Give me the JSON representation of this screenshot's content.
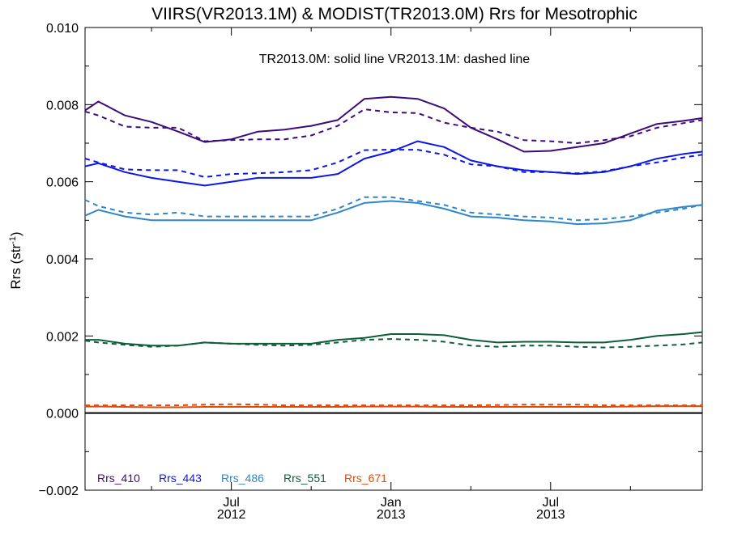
{
  "chart_data": {
    "type": "line",
    "title": "VIIRS(VR2013.1M) & MODIST(TR2013.0M)  Rrs for Mesotrophic",
    "annotation": "TR2013.0M: solid line   VR2013.1M: dashed line",
    "ylabel_main": "Rrs (str",
    "ylabel_sup": "-1",
    "ylabel_close": ")",
    "ylim": [
      -0.002,
      0.01
    ],
    "yticks": [
      -0.002,
      0.0,
      0.002,
      0.004,
      0.006,
      0.008,
      0.01
    ],
    "ytick_labels": [
      "−0.002",
      "0.000",
      "0.002",
      "0.004",
      "0.006",
      "0.008",
      "0.010"
    ],
    "x_unit": "month index (0 = Jan 2012)",
    "xlim": [
      0.5,
      23.7
    ],
    "xticks": [
      {
        "x": 6,
        "line1": "Jul",
        "line2": "2012"
      },
      {
        "x": 12,
        "line1": "Jan",
        "line2": "2013"
      },
      {
        "x": 18,
        "line1": "Jul",
        "line2": "2013"
      }
    ],
    "xminor": [
      3,
      9,
      15,
      21
    ],
    "months": [
      0.5,
      1,
      2,
      3,
      4,
      5,
      6,
      7,
      8,
      9,
      10,
      11,
      12,
      13,
      14,
      15,
      16,
      17,
      18,
      19,
      20,
      21,
      22,
      23,
      23.7
    ],
    "zero_line": true,
    "series": [
      {
        "name": "Rrs_410",
        "color": "#3d0b7a",
        "solid": [
          0.00785,
          0.00808,
          0.00772,
          0.00755,
          0.0073,
          0.00703,
          0.0071,
          0.0073,
          0.00735,
          0.00745,
          0.0076,
          0.00815,
          0.0082,
          0.00815,
          0.0079,
          0.0074,
          0.0071,
          0.00678,
          0.0068,
          0.0069,
          0.007,
          0.00725,
          0.0075,
          0.00758,
          0.00765
        ],
        "dashed": [
          0.00782,
          0.00772,
          0.00743,
          0.0074,
          0.0074,
          0.00705,
          0.00708,
          0.0071,
          0.0071,
          0.0072,
          0.00745,
          0.00788,
          0.0078,
          0.00778,
          0.00753,
          0.0074,
          0.0073,
          0.00708,
          0.00705,
          0.007,
          0.00708,
          0.00718,
          0.0074,
          0.00752,
          0.0076
        ]
      },
      {
        "name": "Rrs_443",
        "color": "#0b17e6",
        "solid": [
          0.0064,
          0.00648,
          0.00625,
          0.0061,
          0.006,
          0.0059,
          0.006,
          0.0061,
          0.0061,
          0.0061,
          0.0062,
          0.0066,
          0.00678,
          0.00705,
          0.0069,
          0.00655,
          0.0064,
          0.0063,
          0.00625,
          0.0062,
          0.00625,
          0.0064,
          0.0066,
          0.00672,
          0.00678
        ],
        "dashed": [
          0.0066,
          0.0065,
          0.00632,
          0.0063,
          0.0063,
          0.00612,
          0.0062,
          0.00622,
          0.00625,
          0.0063,
          0.0065,
          0.00682,
          0.00683,
          0.00683,
          0.0067,
          0.00645,
          0.0064,
          0.00625,
          0.00625,
          0.00622,
          0.00627,
          0.0064,
          0.0065,
          0.00663,
          0.0067
        ]
      },
      {
        "name": "Rrs_486",
        "color": "#2f86c8",
        "solid": [
          0.00512,
          0.00527,
          0.0051,
          0.005,
          0.005,
          0.005,
          0.005,
          0.005,
          0.005,
          0.005,
          0.0052,
          0.00545,
          0.0055,
          0.00545,
          0.0053,
          0.0051,
          0.00507,
          0.005,
          0.00497,
          0.0049,
          0.00492,
          0.005,
          0.00525,
          0.00535,
          0.0054
        ],
        "dashed": [
          0.00553,
          0.00537,
          0.0052,
          0.00515,
          0.0052,
          0.0051,
          0.0051,
          0.0051,
          0.0051,
          0.0051,
          0.0053,
          0.0056,
          0.0056,
          0.0055,
          0.0054,
          0.0052,
          0.00515,
          0.0051,
          0.00507,
          0.005,
          0.00503,
          0.0051,
          0.0052,
          0.0053,
          0.0054
        ]
      },
      {
        "name": "Rrs_551",
        "color": "#0d5e38",
        "solid": [
          0.0019,
          0.0019,
          0.0018,
          0.00175,
          0.00175,
          0.00183,
          0.0018,
          0.0018,
          0.0018,
          0.0018,
          0.0019,
          0.00195,
          0.00205,
          0.00205,
          0.00202,
          0.0019,
          0.00183,
          0.00185,
          0.00185,
          0.00183,
          0.00183,
          0.0019,
          0.002,
          0.00205,
          0.0021
        ],
        "dashed": [
          0.00188,
          0.00183,
          0.00177,
          0.00172,
          0.00175,
          0.00183,
          0.0018,
          0.00177,
          0.00175,
          0.00177,
          0.00183,
          0.0019,
          0.00192,
          0.0019,
          0.00185,
          0.00175,
          0.00172,
          0.00175,
          0.00175,
          0.00172,
          0.0017,
          0.00172,
          0.00175,
          0.00178,
          0.00183
        ]
      },
      {
        "name": "Rrs_671",
        "color": "#e04a0a",
        "solid": [
          0.00017,
          0.00017,
          0.00016,
          0.00015,
          0.00015,
          0.00016,
          0.00016,
          0.00016,
          0.00016,
          0.00016,
          0.00016,
          0.00017,
          0.00017,
          0.00017,
          0.00016,
          0.00016,
          0.00016,
          0.00016,
          0.00016,
          0.00016,
          0.00016,
          0.00017,
          0.00018,
          0.00018,
          0.00018
        ],
        "dashed": [
          0.0002,
          0.0002,
          0.0002,
          0.0002,
          0.0002,
          0.00022,
          0.00023,
          0.00022,
          0.0002,
          0.0002,
          0.0002,
          0.0002,
          0.0002,
          0.0002,
          0.0002,
          0.0002,
          0.00021,
          0.00022,
          0.00022,
          0.00022,
          0.0002,
          0.0002,
          0.0002,
          0.0002,
          0.0002
        ]
      }
    ],
    "legend_position": "bottom-left"
  }
}
